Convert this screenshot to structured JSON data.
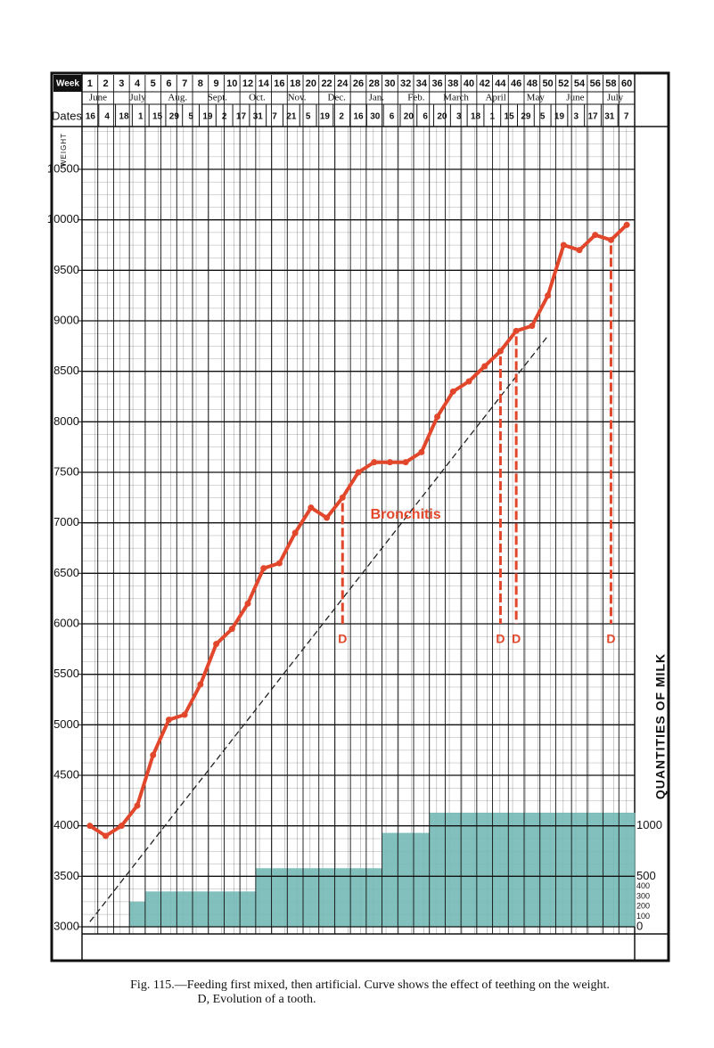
{
  "chart_data": {
    "type": "line",
    "caption": [
      "Fig. 115.—Feeding first mixed, then artificial. Curve shows the effect of teething on the weight.",
      "D, Evolution of a tooth."
    ],
    "week_label": "Week",
    "dates_label": "Dates",
    "ylabel": "WEIGHT",
    "y2label": "QUANTITIES OF MILK",
    "categories": [
      "1",
      "2",
      "3",
      "4",
      "5",
      "6",
      "7",
      "8",
      "9",
      "10",
      "12",
      "14",
      "16",
      "18",
      "20",
      "22",
      "24",
      "26",
      "28",
      "30",
      "32",
      "34",
      "36",
      "38",
      "40",
      "42",
      "44",
      "46",
      "48",
      "50",
      "52",
      "54",
      "56",
      "58",
      "60"
    ],
    "months": [
      "June",
      "July",
      "Aug.",
      "Sept.",
      "Oct.",
      "Nov.",
      "Dec.",
      "Jan.",
      "Feb.",
      "March",
      "April",
      "May",
      "June",
      "July"
    ],
    "dates": [
      "16",
      "4",
      "18",
      "1",
      "15",
      "29",
      "5",
      "19",
      "2",
      "17",
      "31",
      "7",
      "21",
      "5",
      "19",
      "2",
      "16",
      "30",
      "6",
      "20",
      "6",
      "20",
      "3",
      "18",
      "1",
      "15",
      "29",
      "5",
      "19",
      "3",
      "17",
      "31",
      "7"
    ],
    "ylim": [
      3000,
      10500
    ],
    "yticks": [
      3000,
      3500,
      4000,
      4500,
      5000,
      5500,
      6000,
      6500,
      7000,
      7500,
      8000,
      8500,
      9000,
      9500,
      10000,
      10500
    ],
    "y2lim": [
      0,
      7500
    ],
    "y2ticks": [
      0,
      100,
      200,
      300,
      400,
      500,
      1000
    ],
    "series": [
      {
        "color": "#e2472b",
        "values": [
          4000,
          3900,
          4000,
          4200,
          4700,
          5050,
          5100,
          5400,
          5800,
          5950,
          6200,
          6550,
          6600,
          6900,
          7150,
          7050,
          7250,
          7500,
          7600,
          7600,
          7600,
          7700,
          8050,
          8300,
          8400,
          8550,
          8700,
          8900,
          8950,
          9250,
          9750,
          9700,
          9850,
          9800,
          9950
        ]
      },
      {
        "color": "#222222",
        "style": "dashed",
        "values": [
          3050,
          3250,
          3450,
          3650,
          3850,
          4050,
          4250,
          4450,
          4650,
          4850,
          5050,
          5250,
          5450,
          5650,
          5850,
          6050,
          6250,
          6450,
          6650,
          6850,
          7050,
          7250,
          7450,
          7650,
          7850,
          8050,
          8250,
          8450,
          8650,
          8850,
          null,
          null,
          null,
          null,
          null
        ]
      },
      {
        "color": "#74b9b6",
        "axis": "y2",
        "kind": "area",
        "values": [
          0,
          0,
          0,
          250,
          350,
          350,
          350,
          350,
          350,
          350,
          350,
          580,
          580,
          580,
          580,
          580,
          580,
          580,
          580,
          930,
          930,
          930,
          1130,
          1130,
          1130,
          1130,
          1130,
          1130,
          1130,
          1130,
          1130,
          1130,
          1130,
          1130,
          1130
        ]
      }
    ],
    "annotations": [
      {
        "text": "Bronchitis",
        "x": "32"
      }
    ],
    "markers": [
      {
        "label": "D",
        "x": "24"
      },
      {
        "label": "D",
        "x": "44"
      },
      {
        "label": "D",
        "x": "46"
      },
      {
        "label": "D",
        "x": "58"
      }
    ]
  }
}
